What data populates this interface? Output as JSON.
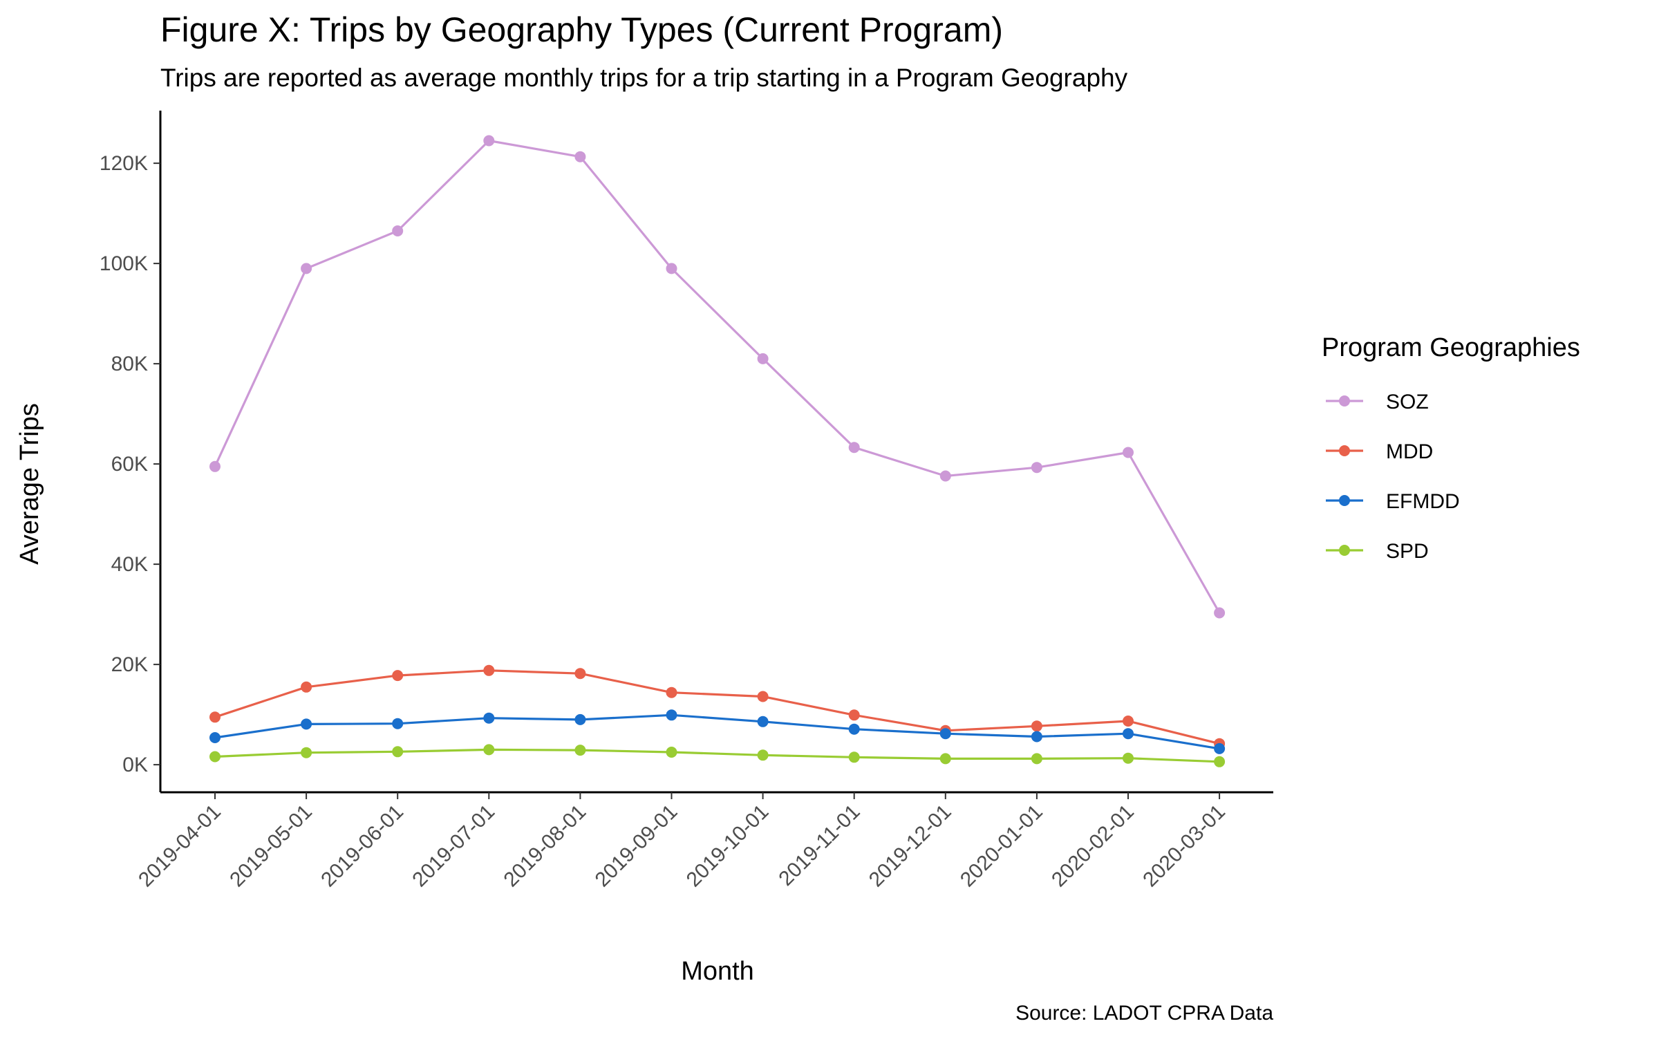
{
  "chart_data": {
    "type": "line",
    "title": "Figure X: Trips by Geography Types (Current Program)",
    "subtitle": "Trips are reported as average monthly trips for a trip starting in a Program Geography",
    "xlabel": "Month",
    "ylabel": "Average Trips",
    "caption": "Source: LADOT CPRA Data",
    "categories": [
      "2019-04-01",
      "2019-05-01",
      "2019-06-01",
      "2019-07-01",
      "2019-08-01",
      "2019-09-01",
      "2019-10-01",
      "2019-11-01",
      "2019-12-01",
      "2020-01-01",
      "2020-02-01",
      "2020-03-01"
    ],
    "ylim": [
      -5500,
      130500
    ],
    "yticks": [
      0,
      20000,
      40000,
      60000,
      80000,
      100000,
      120000
    ],
    "ytick_labels": [
      "0K",
      "20K",
      "40K",
      "60K",
      "80K",
      "100K",
      "120K"
    ],
    "grid": false,
    "legend": {
      "title": "Program Geographies",
      "position": "right"
    },
    "series": [
      {
        "name": "SOZ",
        "color": "#cc99d6",
        "values": [
          59500,
          99000,
          106500,
          124500,
          121300,
          99000,
          81000,
          63300,
          57600,
          59300,
          62300,
          30300
        ]
      },
      {
        "name": "MDD",
        "color": "#e8604a",
        "values": [
          9500,
          15500,
          17800,
          18800,
          18200,
          14400,
          13600,
          9900,
          6800,
          7700,
          8700,
          4200
        ]
      },
      {
        "name": "EFMDD",
        "color": "#1a6fcc",
        "values": [
          5400,
          8100,
          8200,
          9300,
          9000,
          9900,
          8600,
          7100,
          6200,
          5600,
          6200,
          3200
        ]
      },
      {
        "name": "SPD",
        "color": "#99cc33",
        "values": [
          1600,
          2400,
          2600,
          3000,
          2900,
          2500,
          1900,
          1500,
          1200,
          1200,
          1300,
          600
        ]
      }
    ]
  }
}
